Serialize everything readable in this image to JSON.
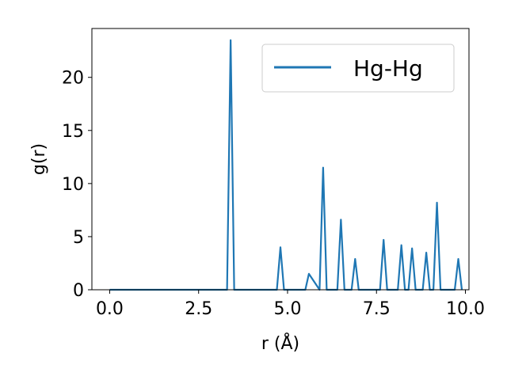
{
  "chart_data": {
    "type": "line",
    "xlabel": "r (Å)",
    "ylabel": "g(r)",
    "xlim": [
      -0.5,
      10.1
    ],
    "ylim": [
      0,
      24.6
    ],
    "xticks": [
      0.0,
      2.5,
      5.0,
      7.5,
      10.0
    ],
    "xtick_labels": [
      "0.0",
      "2.5",
      "5.0",
      "7.5",
      "10.0"
    ],
    "yticks": [
      0,
      5,
      10,
      15,
      20
    ],
    "ytick_labels": [
      "0",
      "5",
      "10",
      "15",
      "20"
    ],
    "grid": false,
    "legend_position": "top-right",
    "series": [
      {
        "name": "Hg-Hg",
        "color": "#1f77b4",
        "x": [
          0.0,
          3.3,
          3.4,
          3.5,
          4.7,
          4.8,
          4.9,
          5.5,
          5.6,
          5.9,
          6.0,
          6.1,
          6.4,
          6.5,
          6.6,
          6.8,
          6.9,
          7.0,
          7.6,
          7.7,
          7.8,
          8.1,
          8.2,
          8.3,
          8.4,
          8.5,
          8.6,
          8.8,
          8.9,
          9.0,
          9.1,
          9.2,
          9.3,
          9.7,
          9.8,
          9.9
        ],
        "y": [
          0,
          0,
          23.5,
          0,
          0,
          4.0,
          0,
          0,
          1.5,
          0,
          11.5,
          0,
          0,
          6.6,
          0,
          0,
          2.9,
          0,
          0,
          4.7,
          0,
          0,
          4.2,
          0,
          0,
          3.9,
          0,
          0,
          3.5,
          0,
          0,
          8.2,
          0,
          0,
          2.9,
          0
        ]
      }
    ]
  }
}
